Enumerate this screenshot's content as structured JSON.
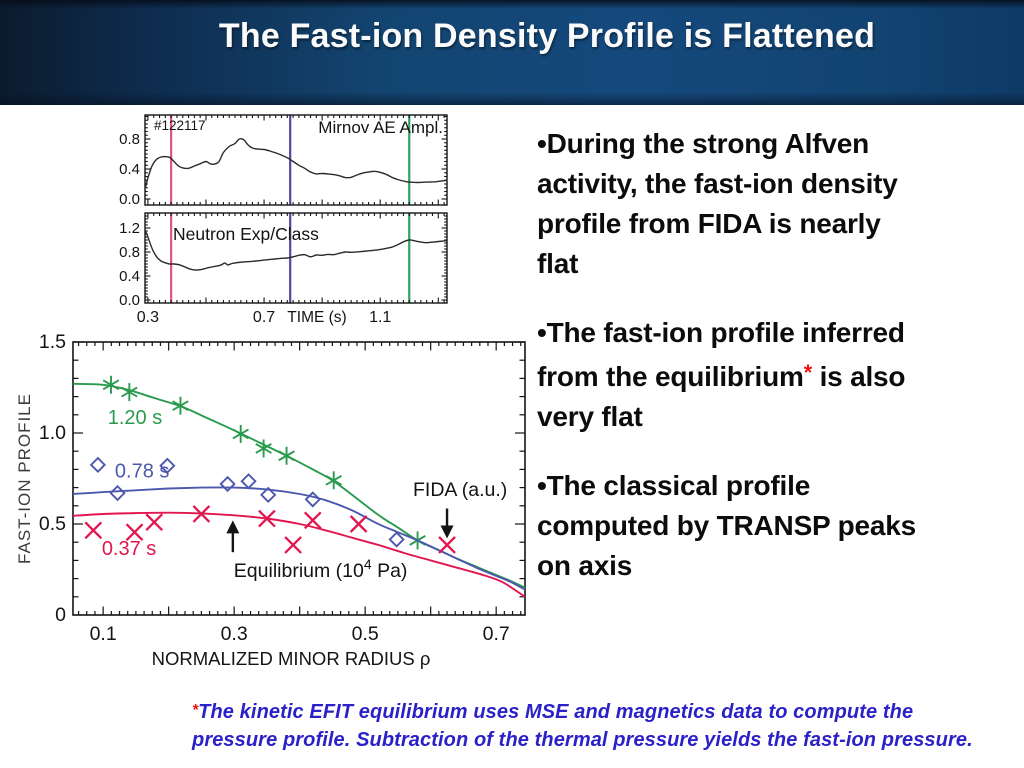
{
  "slide": {
    "title": "The Fast-ion Density Profile is Flattened",
    "bullets": {
      "b1_lines": [
        "•During the strong Alfven",
        "activity, the fast-ion density",
        "profile from FIDA is nearly",
        "flat"
      ],
      "b2_line1": "•The fast-ion profile inferred",
      "b2_line2_pre": "from the equilibrium",
      "b2_star": "*",
      "b2_line2_post": " is also",
      "b2_line3": "very flat",
      "b3_lines": [
        "•The classical profile",
        "computed by TRANSP peaks",
        "on axis"
      ]
    },
    "footnote": {
      "star": "*",
      "line1": "The kinetic EFIT equilibrium uses MSE and magnetics data to compute the",
      "line2": "pressure profile. Subtraction of the thermal pressure yields the fast-ion pressure."
    }
  },
  "colors": {
    "header_blue": "#15497d",
    "star_red": "#ee1111",
    "footnote_blue": "#2b21c8",
    "series_green": "#2a9a4e",
    "series_blue": "#4c58ae",
    "series_red": "#e2164e",
    "vline_pink": "#e0557f",
    "vline_purple": "#54489c",
    "vline_green": "#2ca35e"
  },
  "chart_data": [
    {
      "id": "time-history",
      "type": "line",
      "shot_label": "#122117",
      "xlabel": "TIME (s)",
      "xlim": [
        0.29,
        1.33
      ],
      "xticks": [
        {
          "v": 0.3,
          "label": "0.3"
        },
        {
          "v": 0.7,
          "label": "0.7"
        },
        {
          "v": 1.1,
          "label": "1.1"
        }
      ],
      "vlines": [
        {
          "x": 0.38,
          "color": "#e0557f",
          "meaning": "0.37 s"
        },
        {
          "x": 0.79,
          "color": "#54489c",
          "meaning": "0.78 s"
        },
        {
          "x": 1.2,
          "color": "#2ca35e",
          "meaning": "1.20 s"
        }
      ],
      "panels": [
        {
          "title": "Mirnov AE Ampl.",
          "ylim": [
            -0.08,
            1.12
          ],
          "yticks": [
            {
              "v": 0.0,
              "label": "0.0"
            },
            {
              "v": 0.4,
              "label": "0.4"
            },
            {
              "v": 0.8,
              "label": "0.8"
            }
          ],
          "line_color": "#2b2b2b",
          "points": [
            [
              0.29,
              0.13
            ],
            [
              0.3,
              0.28
            ],
            [
              0.315,
              0.45
            ],
            [
              0.33,
              0.53
            ],
            [
              0.345,
              0.56
            ],
            [
              0.36,
              0.565
            ],
            [
              0.375,
              0.555
            ],
            [
              0.39,
              0.5
            ],
            [
              0.405,
              0.44
            ],
            [
              0.42,
              0.415
            ],
            [
              0.44,
              0.41
            ],
            [
              0.46,
              0.44
            ],
            [
              0.48,
              0.47
            ],
            [
              0.5,
              0.5
            ],
            [
              0.515,
              0.47
            ],
            [
              0.53,
              0.465
            ],
            [
              0.545,
              0.5
            ],
            [
              0.56,
              0.62
            ],
            [
              0.58,
              0.7
            ],
            [
              0.6,
              0.74
            ],
            [
              0.615,
              0.8
            ],
            [
              0.63,
              0.79
            ],
            [
              0.645,
              0.72
            ],
            [
              0.66,
              0.68
            ],
            [
              0.68,
              0.665
            ],
            [
              0.7,
              0.66
            ],
            [
              0.72,
              0.64
            ],
            [
              0.74,
              0.615
            ],
            [
              0.76,
              0.585
            ],
            [
              0.78,
              0.55
            ],
            [
              0.8,
              0.5
            ],
            [
              0.82,
              0.45
            ],
            [
              0.84,
              0.41
            ],
            [
              0.86,
              0.36
            ],
            [
              0.88,
              0.335
            ],
            [
              0.9,
              0.34
            ],
            [
              0.92,
              0.335
            ],
            [
              0.94,
              0.325
            ],
            [
              0.96,
              0.31
            ],
            [
              0.98,
              0.285
            ],
            [
              1.0,
              0.29
            ],
            [
              1.02,
              0.32
            ],
            [
              1.04,
              0.345
            ],
            [
              1.06,
              0.36
            ],
            [
              1.08,
              0.37
            ],
            [
              1.1,
              0.355
            ],
            [
              1.12,
              0.33
            ],
            [
              1.14,
              0.29
            ],
            [
              1.16,
              0.26
            ],
            [
              1.18,
              0.24
            ],
            [
              1.2,
              0.225
            ],
            [
              1.23,
              0.22
            ],
            [
              1.26,
              0.225
            ],
            [
              1.29,
              0.23
            ],
            [
              1.33,
              0.25
            ]
          ]
        },
        {
          "title": "Neutron Exp/Class",
          "ylim": [
            -0.05,
            1.45
          ],
          "yticks": [
            {
              "v": 0.0,
              "label": "0.0"
            },
            {
              "v": 0.4,
              "label": "0.4"
            },
            {
              "v": 0.8,
              "label": "0.8"
            },
            {
              "v": 1.2,
              "label": "1.2"
            }
          ],
          "line_color": "#2b2b2b",
          "points": [
            [
              0.29,
              1.17
            ],
            [
              0.3,
              1.05
            ],
            [
              0.315,
              0.85
            ],
            [
              0.33,
              0.72
            ],
            [
              0.345,
              0.65
            ],
            [
              0.36,
              0.62
            ],
            [
              0.375,
              0.6
            ],
            [
              0.39,
              0.6
            ],
            [
              0.41,
              0.585
            ],
            [
              0.43,
              0.545
            ],
            [
              0.45,
              0.51
            ],
            [
              0.47,
              0.5
            ],
            [
              0.49,
              0.515
            ],
            [
              0.51,
              0.54
            ],
            [
              0.53,
              0.56
            ],
            [
              0.55,
              0.58
            ],
            [
              0.565,
              0.615
            ],
            [
              0.575,
              0.585
            ],
            [
              0.59,
              0.61
            ],
            [
              0.61,
              0.625
            ],
            [
              0.63,
              0.635
            ],
            [
              0.65,
              0.64
            ],
            [
              0.67,
              0.65
            ],
            [
              0.7,
              0.665
            ],
            [
              0.73,
              0.68
            ],
            [
              0.76,
              0.695
            ],
            [
              0.78,
              0.7
            ],
            [
              0.8,
              0.72
            ],
            [
              0.82,
              0.745
            ],
            [
              0.84,
              0.755
            ],
            [
              0.86,
              0.72
            ],
            [
              0.88,
              0.75
            ],
            [
              0.9,
              0.745
            ],
            [
              0.92,
              0.76
            ],
            [
              0.94,
              0.755
            ],
            [
              0.96,
              0.78
            ],
            [
              0.98,
              0.8
            ],
            [
              1.0,
              0.795
            ],
            [
              1.03,
              0.805
            ],
            [
              1.06,
              0.82
            ],
            [
              1.09,
              0.835
            ],
            [
              1.12,
              0.86
            ],
            [
              1.14,
              0.88
            ],
            [
              1.16,
              0.92
            ],
            [
              1.18,
              0.97
            ],
            [
              1.2,
              1.0
            ],
            [
              1.22,
              0.985
            ],
            [
              1.24,
              0.965
            ],
            [
              1.26,
              0.955
            ],
            [
              1.28,
              0.965
            ],
            [
              1.3,
              0.975
            ],
            [
              1.33,
              0.99
            ]
          ]
        }
      ]
    },
    {
      "id": "fast-ion-profile",
      "type": "line",
      "ylabel": "FAST-ION PROFILE",
      "xlabel": "NORMALIZED MINOR RADIUS ρ",
      "xlim": [
        0.054,
        0.744
      ],
      "ylim": [
        0,
        1.5
      ],
      "xticks": [
        {
          "v": 0.1,
          "label": "0.1"
        },
        {
          "v": 0.3,
          "label": "0.3"
        },
        {
          "v": 0.5,
          "label": "0.5"
        },
        {
          "v": 0.7,
          "label": "0.7"
        }
      ],
      "yticks": [
        {
          "v": 0,
          "label": "0"
        },
        {
          "v": 0.5,
          "label": "0.5"
        },
        {
          "v": 1.0,
          "label": "1.0"
        },
        {
          "v": 1.5,
          "label": "1.5"
        }
      ],
      "series": [
        {
          "name": "1.20 s",
          "color": "#2a9a4e",
          "marker": "asterisk",
          "label_pos": [
            0.107,
            1.05
          ],
          "curve": [
            [
              0.054,
              1.27
            ],
            [
              0.1,
              1.265
            ],
            [
              0.14,
              1.235
            ],
            [
              0.18,
              1.19
            ],
            [
              0.22,
              1.145
            ],
            [
              0.26,
              1.08
            ],
            [
              0.3,
              1.015
            ],
            [
              0.34,
              0.945
            ],
            [
              0.38,
              0.875
            ],
            [
              0.42,
              0.8
            ],
            [
              0.45,
              0.74
            ],
            [
              0.48,
              0.66
            ],
            [
              0.52,
              0.55
            ],
            [
              0.55,
              0.48
            ],
            [
              0.58,
              0.41
            ],
            [
              0.61,
              0.36
            ],
            [
              0.64,
              0.31
            ],
            [
              0.67,
              0.265
            ],
            [
              0.7,
              0.22
            ],
            [
              0.72,
              0.19
            ],
            [
              0.744,
              0.15
            ]
          ],
          "points": [
            [
              0.112,
              1.265
            ],
            [
              0.14,
              1.225
            ],
            [
              0.218,
              1.15
            ],
            [
              0.31,
              0.995
            ],
            [
              0.345,
              0.915
            ],
            [
              0.38,
              0.875
            ],
            [
              0.452,
              0.74
            ],
            [
              0.58,
              0.41
            ]
          ]
        },
        {
          "name": "0.78 s",
          "color": "#4c58ae",
          "marker": "diamond",
          "label_pos": [
            0.118,
            0.755
          ],
          "curve": [
            [
              0.054,
              0.665
            ],
            [
              0.1,
              0.675
            ],
            [
              0.15,
              0.685
            ],
            [
              0.2,
              0.695
            ],
            [
              0.25,
              0.7
            ],
            [
              0.3,
              0.7
            ],
            [
              0.35,
              0.69
            ],
            [
              0.4,
              0.665
            ],
            [
              0.44,
              0.63
            ],
            [
              0.48,
              0.575
            ],
            [
              0.52,
              0.5
            ],
            [
              0.55,
              0.455
            ],
            [
              0.58,
              0.41
            ],
            [
              0.61,
              0.36
            ],
            [
              0.64,
              0.31
            ],
            [
              0.67,
              0.26
            ],
            [
              0.7,
              0.215
            ],
            [
              0.72,
              0.185
            ],
            [
              0.744,
              0.14
            ]
          ],
          "points": [
            [
              0.092,
              0.825
            ],
            [
              0.122,
              0.67
            ],
            [
              0.198,
              0.82
            ],
            [
              0.29,
              0.72
            ],
            [
              0.322,
              0.735
            ],
            [
              0.352,
              0.66
            ],
            [
              0.42,
              0.635
            ],
            [
              0.548,
              0.415
            ]
          ]
        },
        {
          "name": "0.37 s",
          "color": "#e2164e",
          "marker": "x",
          "label_pos": [
            0.098,
            0.33
          ],
          "curve": [
            [
              0.054,
              0.545
            ],
            [
              0.1,
              0.555
            ],
            [
              0.15,
              0.56
            ],
            [
              0.2,
              0.562
            ],
            [
              0.25,
              0.558
            ],
            [
              0.3,
              0.548
            ],
            [
              0.35,
              0.53
            ],
            [
              0.4,
              0.5
            ],
            [
              0.44,
              0.465
            ],
            [
              0.48,
              0.425
            ],
            [
              0.52,
              0.385
            ],
            [
              0.56,
              0.34
            ],
            [
              0.6,
              0.3
            ],
            [
              0.64,
              0.26
            ],
            [
              0.68,
              0.22
            ],
            [
              0.71,
              0.18
            ],
            [
              0.744,
              0.1
            ]
          ],
          "points": [
            [
              0.085,
              0.465
            ],
            [
              0.148,
              0.455
            ],
            [
              0.178,
              0.51
            ],
            [
              0.25,
              0.555
            ],
            [
              0.35,
              0.53
            ],
            [
              0.39,
              0.385
            ],
            [
              0.42,
              0.52
            ],
            [
              0.49,
              0.5
            ],
            [
              0.625,
              0.385
            ]
          ]
        }
      ],
      "annotations": [
        {
          "id": "fida",
          "text": "FIDA (a.u.)",
          "pos": [
            0.645,
            0.655
          ],
          "arrow": {
            "x": 0.625,
            "tail": 0.585,
            "tip": 0.42,
            "dir": "down"
          }
        },
        {
          "id": "equilibrium",
          "pre": "Equilibrium (10",
          "sup": "4",
          "post": " Pa)",
          "pos": [
            0.432,
            0.21
          ],
          "arrow": {
            "x": 0.298,
            "tail": 0.345,
            "tip": 0.52,
            "dir": "up"
          }
        }
      ]
    }
  ]
}
